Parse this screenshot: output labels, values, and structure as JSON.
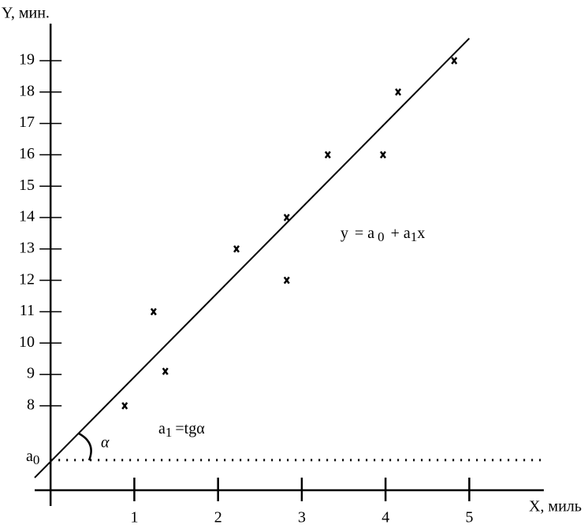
{
  "chart_data": {
    "type": "scatter",
    "y_label": "Y, мин.",
    "x_label": "X, миль",
    "x": [
      0.885,
      1.23,
      1.37,
      2.22,
      2.82,
      2.82,
      3.31,
      3.97,
      4.15,
      4.82
    ],
    "values": [
      8.0,
      11.0,
      9.1,
      13.0,
      14.0,
      12.0,
      16.0,
      16.0,
      18.0,
      19.0
    ],
    "color": "#000000",
    "fit_line": {
      "x": [
        -0.19,
        5.0
      ],
      "values": [
        5.71,
        19.71
      ]
    },
    "a0_level": 6.27,
    "xlim": [
      -0.19,
      5.89
    ],
    "ylim": [
      5.31,
      20.18
    ],
    "xticks": [
      1,
      2,
      3,
      4,
      5
    ],
    "yticks": [
      8,
      9,
      10,
      11,
      12,
      13,
      14,
      15,
      16,
      17,
      18,
      19
    ],
    "equation": [
      "y",
      "= a",
      "0",
      "+ a",
      "1",
      "x"
    ],
    "slope_note": [
      "a",
      "1",
      "=tgα"
    ],
    "angle_label": "α",
    "a0_label": [
      "a",
      "0"
    ]
  }
}
